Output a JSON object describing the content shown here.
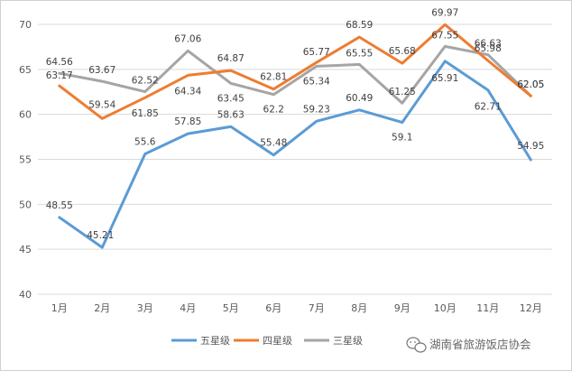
{
  "chart_data": {
    "type": "line",
    "categories": [
      "1月",
      "2月",
      "3月",
      "4月",
      "5月",
      "6月",
      "7月",
      "8月",
      "9月",
      "10月",
      "11月",
      "12月"
    ],
    "ylim": [
      40,
      70
    ],
    "yticks": [
      40,
      45,
      50,
      55,
      60,
      65,
      70
    ],
    "grid": true,
    "legend_position": "bottom",
    "series": [
      {
        "name": "五星级",
        "color": "#5b9bd5",
        "values": [
          48.55,
          45.21,
          55.6,
          57.85,
          58.63,
          55.48,
          59.23,
          60.49,
          59.1,
          65.91,
          62.71,
          54.95
        ]
      },
      {
        "name": "四星级",
        "color": "#ed7d31",
        "values": [
          63.17,
          59.54,
          61.85,
          64.34,
          64.87,
          62.81,
          65.77,
          68.59,
          65.68,
          69.97,
          65.98,
          62.05
        ]
      },
      {
        "name": "三星级",
        "color": "#a5a5a5",
        "values": [
          64.56,
          63.67,
          62.52,
          67.06,
          63.45,
          62.2,
          65.34,
          65.55,
          61.25,
          67.55,
          66.63,
          62.05
        ]
      }
    ]
  },
  "watermark": {
    "text": "湖南省旅游饭店协会"
  }
}
